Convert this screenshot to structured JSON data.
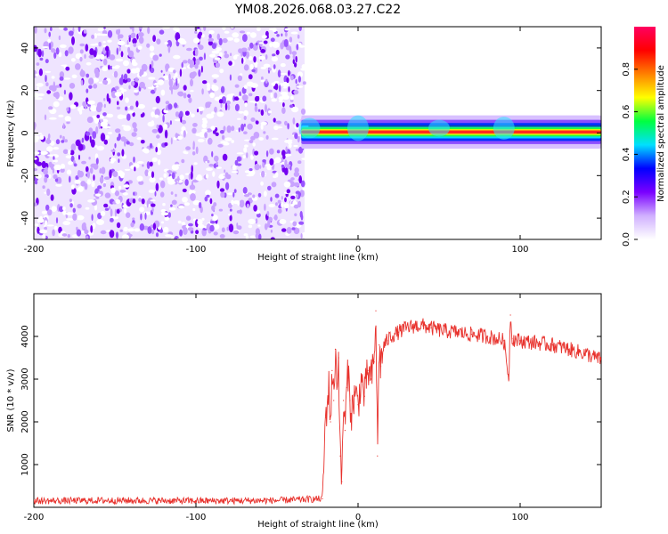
{
  "title": "YM08.2026.068.03.27.C22",
  "chart_data": [
    {
      "type": "heatmap",
      "name": "spectrogram",
      "xlabel": "Height of straight line (km)",
      "ylabel": "Frequency (Hz)",
      "xlim": [
        -200,
        150
      ],
      "ylim": [
        -50,
        50
      ],
      "xticks": [
        -200,
        -100,
        0,
        100
      ],
      "xtick_labels": [
        "-200",
        "-100",
        "0",
        "100"
      ],
      "yticks": [
        -40,
        -20,
        0,
        20,
        40
      ],
      "ytick_labels": [
        "-40",
        "-20",
        "0",
        "20",
        "40"
      ],
      "noise_region": {
        "x_from": -200,
        "x_to": -33,
        "note": "random low-amplitude speckle"
      },
      "signal_band": {
        "x_from": -35,
        "x_to": 150,
        "center_freq_hz": 0.5,
        "width_hz": 3
      },
      "colorbar": {
        "label": "Normalized spectral amplitude",
        "range": [
          0,
          1
        ],
        "ticks": [
          0,
          0.2,
          0.4,
          0.6,
          0.8
        ],
        "tick_labels": [
          "0.0",
          "0.2",
          "0.4",
          "0.6",
          "0.8"
        ],
        "colors": [
          "#ffffff",
          "#d0b0ff",
          "#7a00ff",
          "#0000ff",
          "#00e0ff",
          "#00ff40",
          "#ffff00",
          "#ff8000",
          "#ff0000",
          "#ff0060"
        ]
      }
    },
    {
      "type": "line",
      "name": "snr",
      "xlabel": "Height of straight line (km)",
      "ylabel": "SNR (10 * v/v)",
      "xlim": [
        -200,
        150
      ],
      "ylim": [
        0,
        5000
      ],
      "xticks": [
        -200,
        -100,
        0,
        100
      ],
      "xtick_labels": [
        "-200",
        "-100",
        "0",
        "100"
      ],
      "yticks": [
        1000,
        2000,
        3000,
        4000
      ],
      "ytick_labels": [
        "1000",
        "2000",
        "3000",
        "4000"
      ],
      "color": "#e8322d",
      "series": [
        {
          "name": "SNR",
          "x": [
            -200,
            -150,
            -100,
            -50,
            -22,
            -20,
            -18,
            -17,
            -16,
            -15,
            -14,
            -13,
            -12,
            -11,
            -10,
            -9,
            -8,
            -7,
            -6,
            -5,
            -4,
            -2,
            0,
            2,
            4,
            6,
            8,
            10,
            11,
            12,
            13,
            14,
            15,
            16,
            18,
            20,
            25,
            30,
            35,
            40,
            45,
            50,
            60,
            70,
            80,
            90,
            93,
            94,
            95,
            100,
            110,
            120,
            130,
            140,
            150
          ],
          "y": [
            150,
            160,
            150,
            160,
            200,
            2100,
            2800,
            2000,
            3200,
            2500,
            3700,
            2900,
            3500,
            1200,
            600,
            2500,
            1800,
            2800,
            3200,
            2500,
            2200,
            2700,
            2400,
            3000,
            2600,
            3200,
            3000,
            3400,
            4600,
            1200,
            3800,
            3300,
            3600,
            3800,
            3900,
            4000,
            4100,
            4200,
            4250,
            4250,
            4200,
            4150,
            4100,
            4050,
            4000,
            3900,
            3000,
            4500,
            3950,
            3900,
            3850,
            3800,
            3700,
            3600,
            3450
          ]
        }
      ]
    }
  ]
}
